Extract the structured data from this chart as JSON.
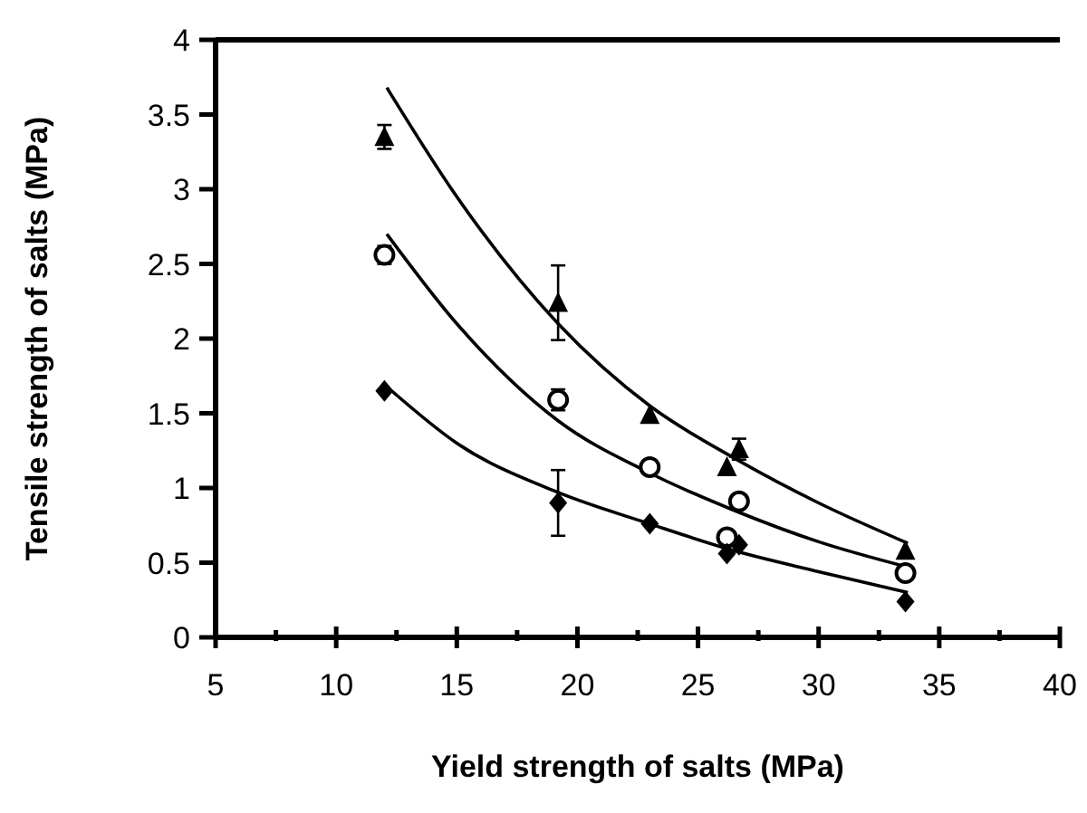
{
  "chart_data": {
    "type": "scatter",
    "xlabel": "Yield strength of salts (MPa)",
    "ylabel": "Tensile strength of salts (MPa)",
    "xlim": [
      5,
      40
    ],
    "ylim": [
      0,
      4
    ],
    "xticks": [
      5,
      {
        "value": 7.5,
        "label": null
      },
      10,
      {
        "value": 12.5,
        "label": null
      },
      15,
      {
        "value": 17.5,
        "label": null
      },
      20,
      {
        "value": 22.5,
        "label": null
      },
      25,
      {
        "value": 27.5,
        "label": null
      },
      30,
      {
        "value": 32.5,
        "label": null
      },
      35,
      {
        "value": 37.5,
        "label": null
      },
      40
    ],
    "yticks": [
      0,
      0.5,
      1,
      1.5,
      2,
      2.5,
      3,
      3.5,
      4
    ],
    "grid": false,
    "series": [
      {
        "color": "#000000",
        "marker": "triangle",
        "x": [
          12,
          19.2,
          23,
          26.2,
          26.7,
          33.6
        ],
        "values": [
          3.35,
          2.24,
          1.49,
          1.14,
          1.26,
          0.58
        ],
        "errors": [
          0.08,
          0.25,
          null,
          null,
          0.07,
          null
        ]
      },
      {
        "color": "#000000",
        "marker": "circle",
        "x": [
          12,
          19.2,
          23,
          26.2,
          26.7,
          33.6
        ],
        "values": [
          2.56,
          1.59,
          1.14,
          0.67,
          0.91,
          0.43
        ],
        "errors": [
          0.06,
          0.07,
          null,
          null,
          null,
          null
        ]
      },
      {
        "color": "#000000",
        "marker": "diamond",
        "x": [
          12,
          19.2,
          23,
          26.2,
          26.7,
          33.6
        ],
        "values": [
          1.65,
          0.9,
          0.76,
          0.56,
          0.62,
          0.24
        ],
        "errors": [
          null,
          0.22,
          null,
          null,
          null,
          null
        ]
      },
      {
        "type": "line",
        "color": "#000000",
        "x": [
          12.1,
          15,
          19.2,
          23,
          26.5,
          30,
          33.7
        ],
        "values": [
          3.68,
          2.95,
          2.1,
          1.55,
          1.2,
          0.9,
          0.63
        ]
      },
      {
        "type": "line",
        "color": "#000000",
        "x": [
          12.1,
          15,
          19.2,
          23,
          26.5,
          30,
          33.7
        ],
        "values": [
          2.7,
          2.1,
          1.45,
          1.1,
          0.85,
          0.64,
          0.47
        ]
      },
      {
        "type": "line",
        "color": "#000000",
        "x": [
          12.3,
          15,
          19.2,
          23,
          26.5,
          30,
          33.7
        ],
        "values": [
          1.65,
          1.3,
          0.97,
          0.76,
          0.58,
          0.44,
          0.3
        ]
      }
    ]
  }
}
